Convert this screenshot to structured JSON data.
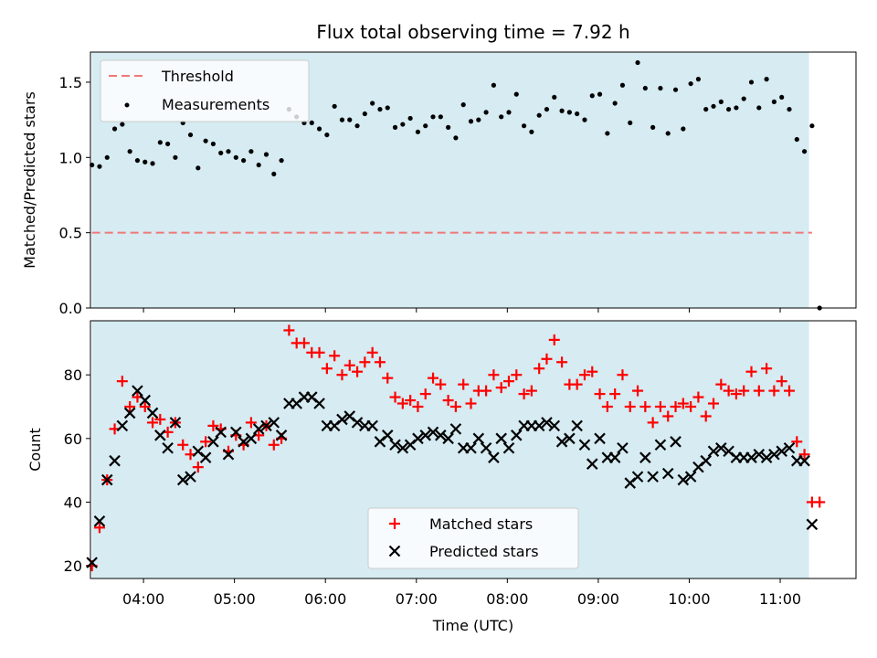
{
  "chart_data": [
    {
      "type": "scatter",
      "title": "Flux total observing time = 7.92 h",
      "xlabel": "",
      "ylabel": "Matched/Predicted stars",
      "ylim": [
        0.0,
        1.7
      ],
      "yticks": [
        "0.0",
        "0.5",
        "1.0",
        "1.5"
      ],
      "xlim": [
        "03:25",
        "11:50"
      ],
      "legend": {
        "placement": "top-left",
        "entries": [
          "Threshold",
          "Measurements"
        ]
      },
      "shaded_span": [
        "03:26",
        "11:19"
      ],
      "threshold": {
        "name": "Threshold",
        "value": 0.5,
        "color": "#f07878",
        "style": "dashed",
        "x_range": [
          "03:26",
          "11:21"
        ]
      },
      "series": [
        {
          "name": "Measurements",
          "color": "#000000",
          "x": [
            "03:26",
            "03:31",
            "03:36",
            "03:41",
            "03:46",
            "03:51",
            "03:56",
            "04:01",
            "04:06",
            "04:11",
            "04:16",
            "04:21",
            "04:26",
            "04:31",
            "04:36",
            "04:41",
            "04:46",
            "04:51",
            "04:56",
            "05:01",
            "05:06",
            "05:11",
            "05:16",
            "05:21",
            "05:26",
            "05:31",
            "05:36",
            "05:41",
            "05:46",
            "05:51",
            "05:56",
            "06:01",
            "06:06",
            "06:11",
            "06:16",
            "06:21",
            "06:26",
            "06:31",
            "06:36",
            "06:41",
            "06:46",
            "06:51",
            "06:56",
            "07:01",
            "07:06",
            "07:11",
            "07:16",
            "07:21",
            "07:26",
            "07:31",
            "07:36",
            "07:41",
            "07:46",
            "07:51",
            "07:56",
            "08:01",
            "08:06",
            "08:11",
            "08:16",
            "08:21",
            "08:26",
            "08:31",
            "08:36",
            "08:41",
            "08:46",
            "08:51",
            "08:56",
            "09:01",
            "09:06",
            "09:11",
            "09:16",
            "09:21",
            "09:26",
            "09:31",
            "09:36",
            "09:41",
            "09:46",
            "09:51",
            "09:56",
            "10:01",
            "10:06",
            "10:11",
            "10:16",
            "10:21",
            "10:26",
            "10:31",
            "10:36",
            "10:41",
            "10:46",
            "10:51",
            "10:56",
            "11:01",
            "11:06",
            "11:11",
            "11:16",
            "11:21",
            "11:26"
          ],
          "values": [
            0.95,
            0.94,
            1.0,
            1.19,
            1.22,
            1.04,
            0.98,
            0.97,
            0.96,
            1.1,
            1.09,
            1.0,
            1.23,
            1.15,
            0.93,
            1.11,
            1.09,
            1.03,
            1.04,
            1.0,
            0.98,
            1.04,
            0.95,
            1.02,
            0.89,
            0.98,
            1.32,
            1.27,
            1.23,
            1.23,
            1.19,
            1.15,
            1.34,
            1.25,
            1.25,
            1.21,
            1.29,
            1.36,
            1.32,
            1.33,
            1.2,
            1.22,
            1.26,
            1.17,
            1.21,
            1.27,
            1.27,
            1.2,
            1.13,
            1.35,
            1.24,
            1.25,
            1.3,
            1.48,
            1.27,
            1.3,
            1.42,
            1.21,
            1.17,
            1.28,
            1.32,
            1.4,
            1.31,
            1.3,
            1.29,
            1.25,
            1.41,
            1.42,
            1.16,
            1.36,
            1.48,
            1.23,
            1.63,
            1.46,
            1.2,
            1.46,
            1.16,
            1.45,
            1.19,
            1.49,
            1.52,
            1.32,
            1.34,
            1.37,
            1.32,
            1.33,
            1.39,
            1.5,
            1.33,
            1.52,
            1.37,
            1.4,
            1.32,
            1.12,
            1.04,
            1.21,
            0.0
          ]
        }
      ]
    },
    {
      "type": "scatter",
      "title": "",
      "xlabel": "Time (UTC)",
      "ylabel": "Count",
      "ylim": [
        16,
        97
      ],
      "yticks": [
        "20",
        "40",
        "60",
        "80"
      ],
      "xlim": [
        "03:25",
        "11:50"
      ],
      "xticks": [
        "04:00",
        "05:00",
        "06:00",
        "07:00",
        "08:00",
        "09:00",
        "10:00",
        "11:00"
      ],
      "legend": {
        "placement": "lower-center",
        "entries": [
          "Matched stars",
          "Predicted stars"
        ]
      },
      "shaded_span": [
        "03:26",
        "11:19"
      ],
      "series": [
        {
          "name": "Matched stars",
          "color": "#ff0000",
          "marker": "plus",
          "x": [
            "03:26",
            "03:31",
            "03:36",
            "03:41",
            "03:46",
            "03:51",
            "03:56",
            "04:01",
            "04:06",
            "04:11",
            "04:16",
            "04:21",
            "04:26",
            "04:31",
            "04:36",
            "04:41",
            "04:46",
            "04:51",
            "04:56",
            "05:01",
            "05:06",
            "05:11",
            "05:16",
            "05:21",
            "05:26",
            "05:31",
            "05:36",
            "05:41",
            "05:46",
            "05:51",
            "05:56",
            "06:01",
            "06:06",
            "06:11",
            "06:16",
            "06:21",
            "06:26",
            "06:31",
            "06:36",
            "06:41",
            "06:46",
            "06:51",
            "06:56",
            "07:01",
            "07:06",
            "07:11",
            "07:16",
            "07:21",
            "07:26",
            "07:31",
            "07:36",
            "07:41",
            "07:46",
            "07:51",
            "07:56",
            "08:01",
            "08:06",
            "08:11",
            "08:16",
            "08:21",
            "08:26",
            "08:31",
            "08:36",
            "08:41",
            "08:46",
            "08:51",
            "08:56",
            "09:01",
            "09:06",
            "09:11",
            "09:16",
            "09:21",
            "09:26",
            "09:31",
            "09:36",
            "09:41",
            "09:46",
            "09:51",
            "09:56",
            "10:01",
            "10:06",
            "10:11",
            "10:16",
            "10:21",
            "10:26",
            "10:31",
            "10:36",
            "10:41",
            "10:46",
            "10:51",
            "10:56",
            "11:01",
            "11:06",
            "11:11",
            "11:16",
            "11:21",
            "11:26"
          ],
          "values": [
            20,
            32,
            47,
            63,
            78,
            70,
            73,
            70,
            65,
            66,
            62,
            65,
            58,
            55,
            51,
            59,
            64,
            63,
            56,
            61,
            58,
            65,
            61,
            64,
            58,
            60,
            94,
            90,
            90,
            87,
            87,
            82,
            86,
            80,
            83,
            81,
            84,
            87,
            84,
            79,
            73,
            71,
            72,
            70,
            74,
            79,
            77,
            72,
            70,
            77,
            71,
            75,
            75,
            80,
            76,
            78,
            80,
            74,
            75,
            82,
            85,
            91,
            84,
            77,
            77,
            80,
            81,
            74,
            70,
            74,
            80,
            70,
            75,
            70,
            65,
            70,
            67,
            70,
            71,
            70,
            73,
            67,
            71,
            77,
            75,
            74,
            75,
            81,
            75,
            82,
            75,
            78,
            75,
            59,
            55,
            40,
            40
          ]
        },
        {
          "name": "Predicted stars",
          "color": "#000000",
          "marker": "x",
          "x": [
            "03:26",
            "03:31",
            "03:36",
            "03:41",
            "03:46",
            "03:51",
            "03:56",
            "04:01",
            "04:06",
            "04:11",
            "04:16",
            "04:21",
            "04:26",
            "04:31",
            "04:36",
            "04:41",
            "04:46",
            "04:51",
            "04:56",
            "05:01",
            "05:06",
            "05:11",
            "05:16",
            "05:21",
            "05:26",
            "05:31",
            "05:36",
            "05:41",
            "05:46",
            "05:51",
            "05:56",
            "06:01",
            "06:06",
            "06:11",
            "06:16",
            "06:21",
            "06:26",
            "06:31",
            "06:36",
            "06:41",
            "06:46",
            "06:51",
            "06:56",
            "07:01",
            "07:06",
            "07:11",
            "07:16",
            "07:21",
            "07:26",
            "07:31",
            "07:36",
            "07:41",
            "07:46",
            "07:51",
            "07:56",
            "08:01",
            "08:06",
            "08:11",
            "08:16",
            "08:21",
            "08:26",
            "08:31",
            "08:36",
            "08:41",
            "08:46",
            "08:51",
            "08:56",
            "09:01",
            "09:06",
            "09:11",
            "09:16",
            "09:21",
            "09:26",
            "09:31",
            "09:36",
            "09:41",
            "09:46",
            "09:51",
            "09:56",
            "10:01",
            "10:06",
            "10:11",
            "10:16",
            "10:21",
            "10:26",
            "10:31",
            "10:36",
            "10:41",
            "10:46",
            "10:51",
            "10:56",
            "11:01",
            "11:06",
            "11:11",
            "11:16",
            "11:21"
          ],
          "values": [
            21,
            34,
            47,
            53,
            64,
            68,
            75,
            72,
            68,
            61,
            57,
            65,
            47,
            48,
            56,
            54,
            59,
            62,
            55,
            62,
            59,
            60,
            63,
            64,
            65,
            61,
            71,
            71,
            73,
            73,
            71,
            64,
            64,
            66,
            67,
            65,
            64,
            64,
            59,
            61,
            58,
            57,
            58,
            60,
            61,
            62,
            61,
            60,
            63,
            57,
            57,
            60,
            57,
            54,
            60,
            57,
            61,
            64,
            64,
            64,
            65,
            64,
            59,
            60,
            64,
            58,
            52,
            60,
            54,
            54,
            57,
            46,
            48,
            54,
            48,
            58,
            49,
            59,
            47,
            48,
            51,
            53,
            56,
            57,
            56,
            54,
            54,
            54,
            55,
            54,
            55,
            56,
            57,
            53,
            53,
            33
          ]
        }
      ]
    }
  ]
}
